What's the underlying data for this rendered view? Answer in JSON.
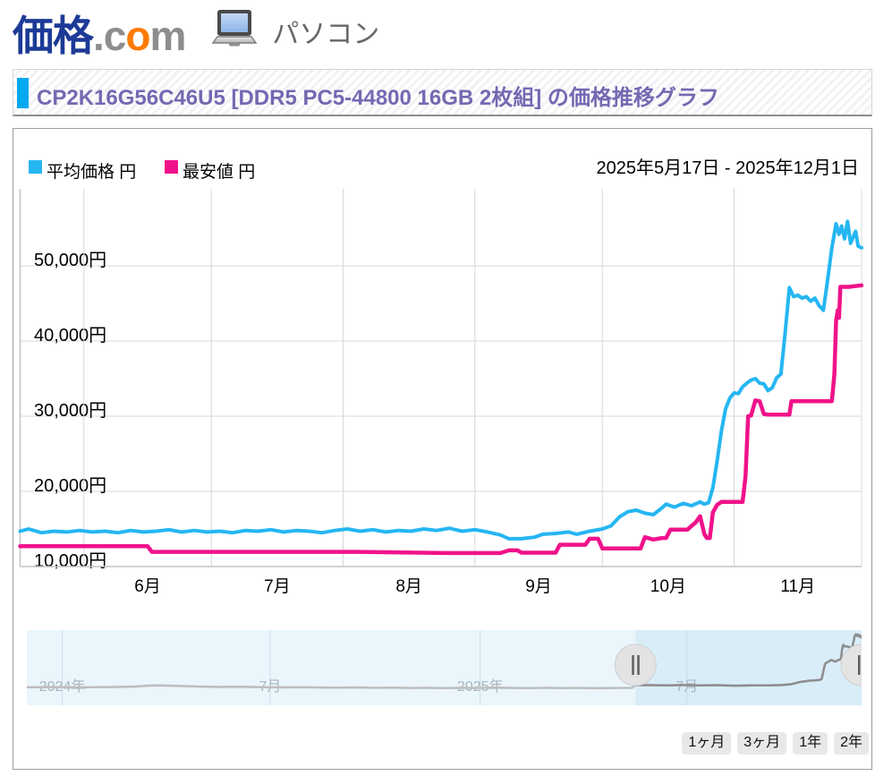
{
  "header": {
    "logo": {
      "kakaku": "価格",
      "dot_c": ".c",
      "o": "o",
      "m": "m"
    },
    "category": "パソコン",
    "colors": {
      "logo_blue": "#1c3a96",
      "logo_gray": "#8d8d8d",
      "logo_orange": "#ff7a00"
    }
  },
  "title_bar": {
    "title": "CP2K16G56C46U5 [DDR5 PC5-44800 16GB 2枚組] の価格推移グラフ",
    "marker_color": "#00a8f0",
    "text_color": "#7568b2"
  },
  "chart": {
    "legend": [
      {
        "label": "平均価格 円",
        "color": "#25b6f2"
      },
      {
        "label": "最安値 円",
        "color": "#f0128a"
      }
    ],
    "date_range": "2025年5月17日 - 2025年12月1日"
  },
  "range_buttons": [
    "1ヶ月",
    "3ヶ月",
    "1年",
    "2年"
  ],
  "chart_data": {
    "type": "line",
    "title": "CP2K16G56C46U5 [DDR5 PC5-44800 16GB 2枚組] の価格推移グラフ",
    "x_start": "2025-05-17",
    "x_end": "2025-12-01",
    "total_days": 198,
    "grid": true,
    "ylim": [
      10000,
      56000
    ],
    "y_axis": {
      "unit": "円",
      "gridlines": [
        {
          "v": 10000,
          "label": "10,000円"
        },
        {
          "v": 20000,
          "label": "20,000円"
        },
        {
          "v": 30000,
          "label": "30,000円"
        },
        {
          "v": 40000,
          "label": "40,000円"
        },
        {
          "v": 50000,
          "label": "50,000円"
        }
      ]
    },
    "x_axis": {
      "gridline_days": [
        15,
        45,
        76,
        107,
        137,
        168,
        198
      ],
      "ticks": [
        {
          "day": 30,
          "label": "6月"
        },
        {
          "day": 60.5,
          "label": "7月"
        },
        {
          "day": 91.5,
          "label": "8月"
        },
        {
          "day": 122,
          "label": "9月"
        },
        {
          "day": 152.5,
          "label": "10月"
        },
        {
          "day": 183,
          "label": "11月"
        }
      ]
    },
    "series": [
      {
        "name": "平均価格 円",
        "color": "#25b6f2",
        "width": 4,
        "points": [
          [
            0,
            14700
          ],
          [
            2,
            15000
          ],
          [
            5,
            14500
          ],
          [
            8,
            14700
          ],
          [
            11,
            14600
          ],
          [
            14,
            14800
          ],
          [
            17,
            14600
          ],
          [
            20,
            14700
          ],
          [
            23,
            14500
          ],
          [
            26,
            14800
          ],
          [
            29,
            14600
          ],
          [
            32,
            14700
          ],
          [
            35,
            14900
          ],
          [
            38,
            14600
          ],
          [
            41,
            14800
          ],
          [
            44,
            14600
          ],
          [
            47,
            14700
          ],
          [
            50,
            14500
          ],
          [
            53,
            14800
          ],
          [
            56,
            14700
          ],
          [
            59,
            14900
          ],
          [
            62,
            14600
          ],
          [
            65,
            14800
          ],
          [
            68,
            14700
          ],
          [
            71,
            14500
          ],
          [
            74,
            14800
          ],
          [
            77,
            15000
          ],
          [
            80,
            14700
          ],
          [
            83,
            14900
          ],
          [
            86,
            14600
          ],
          [
            89,
            14800
          ],
          [
            92,
            14700
          ],
          [
            95,
            15000
          ],
          [
            98,
            14800
          ],
          [
            101,
            15100
          ],
          [
            104,
            14700
          ],
          [
            107,
            14900
          ],
          [
            110,
            14600
          ],
          [
            113,
            14200
          ],
          [
            115,
            13700
          ],
          [
            118,
            13700
          ],
          [
            121,
            13900
          ],
          [
            123,
            14300
          ],
          [
            126,
            14400
          ],
          [
            129,
            14600
          ],
          [
            131,
            14300
          ],
          [
            134,
            14700
          ],
          [
            137,
            15000
          ],
          [
            139,
            15400
          ],
          [
            141,
            16600
          ],
          [
            143,
            17300
          ],
          [
            145,
            17500
          ],
          [
            147,
            17100
          ],
          [
            149,
            16900
          ],
          [
            151,
            17800
          ],
          [
            152,
            18300
          ],
          [
            154,
            17900
          ],
          [
            156,
            18400
          ],
          [
            158,
            18100
          ],
          [
            160,
            18600
          ],
          [
            161,
            18300
          ],
          [
            162,
            18500
          ],
          [
            163,
            20500
          ],
          [
            164,
            24000
          ],
          [
            165,
            28000
          ],
          [
            166,
            31000
          ],
          [
            167,
            32400
          ],
          [
            168,
            33100
          ],
          [
            169,
            33000
          ],
          [
            170,
            33900
          ],
          [
            171,
            34400
          ],
          [
            172,
            34800
          ],
          [
            173,
            35000
          ],
          [
            174,
            34400
          ],
          [
            175,
            34300
          ],
          [
            176,
            33400
          ],
          [
            177,
            33800
          ],
          [
            178,
            35100
          ],
          [
            179,
            35600
          ],
          [
            180,
            41000
          ],
          [
            181,
            47100
          ],
          [
            182,
            45900
          ],
          [
            183,
            46100
          ],
          [
            184,
            45700
          ],
          [
            185,
            45900
          ],
          [
            186,
            45300
          ],
          [
            187,
            45700
          ],
          [
            188,
            44700
          ],
          [
            189,
            44100
          ],
          [
            190,
            48100
          ],
          [
            191,
            52400
          ],
          [
            192,
            55600
          ],
          [
            192.7,
            54200
          ],
          [
            193.3,
            55300
          ],
          [
            194,
            53600
          ],
          [
            194.7,
            55900
          ],
          [
            195.4,
            53000
          ],
          [
            196,
            53800
          ],
          [
            196.6,
            54600
          ],
          [
            197.2,
            52600
          ],
          [
            198,
            52400
          ]
        ]
      },
      {
        "name": "最安値 円",
        "color": "#f0128a",
        "width": 4.5,
        "points": [
          [
            0,
            12700
          ],
          [
            15,
            12700
          ],
          [
            30,
            12700
          ],
          [
            31,
            11950
          ],
          [
            55,
            11950
          ],
          [
            80,
            11950
          ],
          [
            100,
            11800
          ],
          [
            113,
            11800
          ],
          [
            115,
            12150
          ],
          [
            117,
            12150
          ],
          [
            118,
            11850
          ],
          [
            126,
            11850
          ],
          [
            127,
            12900
          ],
          [
            133,
            12900
          ],
          [
            134,
            13700
          ],
          [
            136,
            13700
          ],
          [
            137,
            12400
          ],
          [
            146,
            12400
          ],
          [
            147,
            13900
          ],
          [
            149,
            13600
          ],
          [
            151,
            13800
          ],
          [
            152,
            13800
          ],
          [
            153,
            14900
          ],
          [
            157,
            14900
          ],
          [
            158,
            15400
          ],
          [
            159,
            15900
          ],
          [
            160,
            16700
          ],
          [
            161,
            14300
          ],
          [
            161.6,
            13800
          ],
          [
            162.3,
            13800
          ],
          [
            163,
            17200
          ],
          [
            164,
            18200
          ],
          [
            165,
            18600
          ],
          [
            170,
            18600
          ],
          [
            170.7,
            22000
          ],
          [
            171.3,
            30000
          ],
          [
            172,
            30100
          ],
          [
            173,
            32100
          ],
          [
            174,
            32000
          ],
          [
            175,
            30300
          ],
          [
            176,
            30200
          ],
          [
            181,
            30200
          ],
          [
            181.5,
            32000
          ],
          [
            185,
            32000
          ],
          [
            191,
            32000
          ],
          [
            191.6,
            35600
          ],
          [
            192,
            42700
          ],
          [
            192.4,
            44100
          ],
          [
            192.7,
            43100
          ],
          [
            193,
            47200
          ],
          [
            195,
            47200
          ],
          [
            198,
            47400
          ]
        ]
      }
    ],
    "navigator": {
      "range_start": "2023-12-01",
      "range_end": "2025-12-01",
      "total_days": 731,
      "selected_start_day": 533,
      "selected_end_day": 731,
      "bg_color": "#eaf6fc",
      "selected_bg_color": "#d9edf9",
      "line_color": "#bdbdbd",
      "selected_line_color": "#8d8d8d",
      "labels": [
        {
          "day": 31,
          "label": "2024年"
        },
        {
          "day": 213,
          "label": "7月"
        },
        {
          "day": 397,
          "label": "2025年"
        },
        {
          "day": 578,
          "label": "7月"
        }
      ],
      "points": [
        [
          0,
          13000
        ],
        [
          20,
          13200
        ],
        [
          40,
          12900
        ],
        [
          60,
          13100
        ],
        [
          80,
          13300
        ],
        [
          95,
          13600
        ],
        [
          105,
          14300
        ],
        [
          115,
          14600
        ],
        [
          125,
          14300
        ],
        [
          140,
          13900
        ],
        [
          155,
          13500
        ],
        [
          170,
          13300
        ],
        [
          185,
          13500
        ],
        [
          200,
          13200
        ],
        [
          215,
          13000
        ],
        [
          230,
          12900
        ],
        [
          245,
          13100
        ],
        [
          260,
          12800
        ],
        [
          275,
          12700
        ],
        [
          290,
          12900
        ],
        [
          305,
          12600
        ],
        [
          320,
          12700
        ],
        [
          335,
          12500
        ],
        [
          350,
          12600
        ],
        [
          365,
          12400
        ],
        [
          380,
          12600
        ],
        [
          395,
          12500
        ],
        [
          410,
          12700
        ],
        [
          425,
          12500
        ],
        [
          440,
          12400
        ],
        [
          455,
          12600
        ],
        [
          470,
          12400
        ],
        [
          485,
          12500
        ],
        [
          500,
          12300
        ],
        [
          515,
          12500
        ],
        [
          530,
          12600
        ],
        [
          533,
          14700
        ],
        [
          545,
          14700
        ],
        [
          560,
          14600
        ],
        [
          575,
          14800
        ],
        [
          590,
          14600
        ],
        [
          605,
          14700
        ],
        [
          620,
          14300
        ],
        [
          635,
          14600
        ],
        [
          650,
          14500
        ],
        [
          661,
          14800
        ],
        [
          669,
          15400
        ],
        [
          674,
          16600
        ],
        [
          678,
          17400
        ],
        [
          682,
          17900
        ],
        [
          686,
          18400
        ],
        [
          690,
          18600
        ],
        [
          694,
          18900
        ],
        [
          696,
          19500
        ],
        [
          697,
          23500
        ],
        [
          698,
          28000
        ],
        [
          699,
          31500
        ],
        [
          700,
          32700
        ],
        [
          702,
          33500
        ],
        [
          704,
          34800
        ],
        [
          706,
          34400
        ],
        [
          708,
          33600
        ],
        [
          710,
          34500
        ],
        [
          712,
          35300
        ],
        [
          713,
          36000
        ],
        [
          714,
          44000
        ],
        [
          715,
          47100
        ],
        [
          716,
          45900
        ],
        [
          718,
          45700
        ],
        [
          720,
          45300
        ],
        [
          722,
          44500
        ],
        [
          723,
          46000
        ],
        [
          724,
          50000
        ],
        [
          725,
          54000
        ],
        [
          726,
          55600
        ],
        [
          727,
          54200
        ],
        [
          728,
          55300
        ],
        [
          729,
          53600
        ],
        [
          730,
          54500
        ],
        [
          731,
          52400
        ]
      ]
    }
  }
}
